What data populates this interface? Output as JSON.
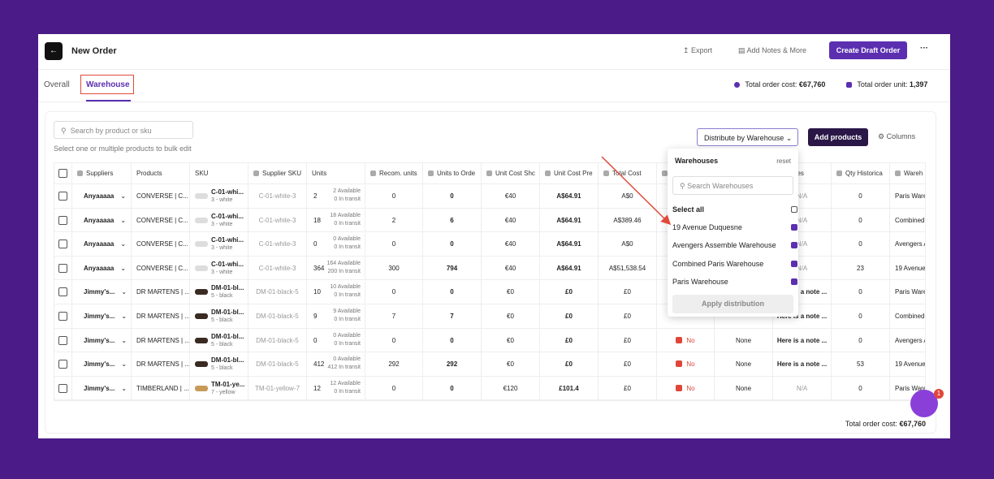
{
  "header": {
    "title": "New Order",
    "export": "Export",
    "notes": "Add Notes & More",
    "create": "Create Draft Order"
  },
  "tabs": [
    "Overall",
    "Warehouse"
  ],
  "totals": {
    "cost_label": "Total order cost:",
    "cost": "€67,760",
    "unit_label": "Total order unit:",
    "unit": "1,397"
  },
  "toolbar": {
    "search": "Search by product or sku",
    "hint": "Select one or multiple products to bulk edit",
    "distribute": "Distribute by Warehouse",
    "add": "Add products",
    "columns": "Columns"
  },
  "table": {
    "headers": [
      "Suppliers",
      "Products",
      "SKU",
      "Supplier SKU",
      "Units",
      "Recom. units",
      "Units to Orde",
      "Unit Cost Shc",
      "Unit Cost Pre",
      "Total Cost",
      "Notes",
      "Qty Historica",
      "Wareh"
    ],
    "rows": [
      {
        "supplier": "Anyaaaaa",
        "product": "CONVERSE | C...",
        "sku": "C-01-whi...",
        "variant": "3 - white",
        "supplier_sku": "C-01-white-3",
        "units": "2",
        "available": "2 Available",
        "transit": "0 In transit",
        "recom": "0",
        "order": "0",
        "cost_ship": "€40",
        "cost_pre": "A$64.91",
        "total": "A$0",
        "notes": "N/A",
        "qty": "0",
        "warehouse": "Paris Warehouse"
      },
      {
        "supplier": "Anyaaaaa",
        "product": "CONVERSE | C...",
        "sku": "C-01-whi...",
        "variant": "3 - white",
        "supplier_sku": "C-01-white-3",
        "units": "18",
        "available": "18 Available",
        "transit": "0 In transit",
        "recom": "2",
        "order": "6",
        "cost_ship": "€40",
        "cost_pre": "A$64.91",
        "total": "A$389.46",
        "notes": "N/A",
        "qty": "0",
        "warehouse": "Combined Paris Warehouse"
      },
      {
        "supplier": "Anyaaaaa",
        "product": "CONVERSE | C...",
        "sku": "C-01-whi...",
        "variant": "3 - white",
        "supplier_sku": "C-01-white-3",
        "units": "0",
        "available": "0 Available",
        "transit": "0 In transit",
        "recom": "0",
        "order": "0",
        "cost_ship": "€40",
        "cost_pre": "A$64.91",
        "total": "A$0",
        "notes": "N/A",
        "qty": "0",
        "warehouse": "Avengers Assemble Warehouse"
      },
      {
        "supplier": "Anyaaaaa",
        "product": "CONVERSE | C...",
        "sku": "C-01-whi...",
        "variant": "3 - white",
        "supplier_sku": "C-01-white-3",
        "units": "364",
        "available": "164 Available",
        "transit": "200 In transit",
        "recom": "300",
        "order": "794",
        "cost_ship": "€40",
        "cost_pre": "A$64.91",
        "total": "A$51,538.54",
        "notes": "N/A",
        "qty": "23",
        "warehouse": "19 Avenue Duquesne"
      },
      {
        "supplier": "Jimmy's...",
        "product": "DR MARTENS | ...",
        "sku": "DM-01-bl...",
        "variant": "5 - black",
        "supplier_sku": "DM-01-black-5",
        "units": "10",
        "available": "10 Available",
        "transit": "0 In transit",
        "recom": "0",
        "order": "0",
        "cost_ship": "€0",
        "cost_pre": "£0",
        "total": "£0",
        "notes": "Here is a note ...",
        "qty": "0",
        "warehouse": "Paris Warehouse"
      },
      {
        "supplier": "Jimmy's...",
        "product": "DR MARTENS | ...",
        "sku": "DM-01-bl...",
        "variant": "5 - black",
        "supplier_sku": "DM-01-black-5",
        "units": "9",
        "available": "9 Available",
        "transit": "0 In transit",
        "recom": "7",
        "order": "7",
        "cost_ship": "€0",
        "cost_pre": "£0",
        "total": "£0",
        "notes": "Here is a note ...",
        "qty": "0",
        "warehouse": "Combined Paris Warehouse"
      },
      {
        "supplier": "Jimmy's...",
        "product": "DR MARTENS | ...",
        "sku": "DM-01-bl...",
        "variant": "5 - black",
        "supplier_sku": "DM-01-black-5",
        "units": "0",
        "available": "0 Available",
        "transit": "0 In transit",
        "recom": "0",
        "order": "0",
        "cost_ship": "€0",
        "cost_pre": "£0",
        "total": "£0",
        "flag": "No",
        "none": "None",
        "notes": "Here is a note ...",
        "qty": "0",
        "warehouse": "Avengers Assemble Warehouse"
      },
      {
        "supplier": "Jimmy's...",
        "product": "DR MARTENS | ...",
        "sku": "DM-01-bl...",
        "variant": "5 - black",
        "supplier_sku": "DM-01-black-5",
        "units": "412",
        "available": "0 Available",
        "transit": "412 In transit",
        "recom": "292",
        "order": "292",
        "cost_ship": "€0",
        "cost_pre": "£0",
        "total": "£0",
        "flag": "No",
        "none": "None",
        "notes": "Here is a note ...",
        "qty": "53",
        "warehouse": "19 Avenue Duquesne"
      },
      {
        "supplier": "Jimmy's...",
        "product": "TIMBERLAND | ...",
        "sku": "TM-01-ye...",
        "variant": "7 - yellow",
        "supplier_sku": "TM-01-yellow-7",
        "units": "12",
        "available": "12 Available",
        "transit": "0 In transit",
        "recom": "0",
        "order": "0",
        "cost_ship": "€120",
        "cost_pre": "£101.4",
        "total": "£0",
        "flag": "No",
        "none": "None",
        "notes": "N/A",
        "qty": "0",
        "warehouse": "Paris Warehouse"
      }
    ]
  },
  "dropdown": {
    "title": "Warehouses",
    "reset": "reset",
    "search": "Search Warehouses",
    "select_all": "Select all",
    "options": [
      "19 Avenue Duquesne",
      "Avengers Assemble Warehouse",
      "Combined Paris Warehouse",
      "Paris Warehouse"
    ],
    "apply": "Apply distribution"
  },
  "footer": {
    "cost_label": "Total order cost:",
    "cost": "€67,760"
  },
  "chat_badge": "1"
}
